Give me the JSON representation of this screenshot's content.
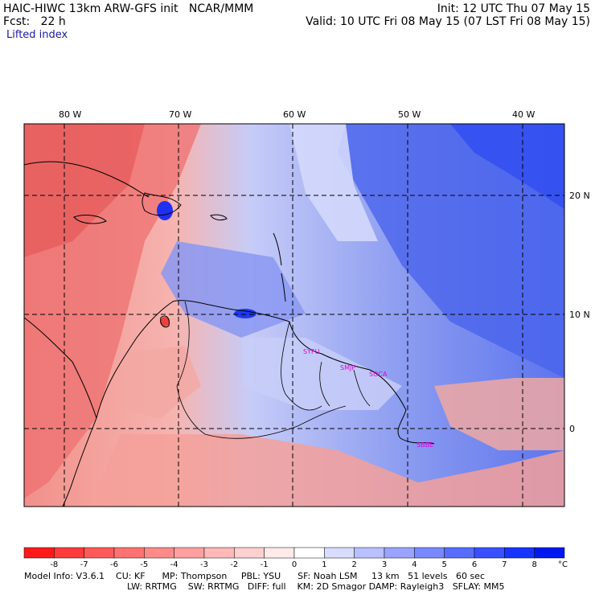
{
  "header": {
    "line1_left": "HAIC-HIWC 13km ARW-GFS init   NCAR/MMM",
    "line1_right": "Init: 12 UTC Thu 07 May 15",
    "line2_left": "Fcst:   22 h",
    "line2_right": "Valid: 10 UTC Fri 08 May 15 (07 LST Fri 08 May 15)",
    "field": "Lifted index"
  },
  "map": {
    "lon_labels": [
      "80 W",
      "70 W",
      "60 W",
      "50 W",
      "40 W"
    ],
    "lat_labels": [
      "20 N",
      "10 N",
      "0"
    ],
    "stations": [
      "SYFU",
      "SMJP",
      "SOCA",
      "SBBE"
    ],
    "colors": {
      "negative": "#f08080",
      "positive": "#5870f0",
      "coast": "#000000"
    }
  },
  "colorbar": {
    "ticks": [
      "-8",
      "-7",
      "-6",
      "-5",
      "-4",
      "-3",
      "-2",
      "-1",
      "0",
      "1",
      "2",
      "3",
      "4",
      "5",
      "6",
      "7",
      "8"
    ],
    "unit": "°C",
    "colors": [
      "#ff1a1a",
      "#ff3b3b",
      "#ff5a5a",
      "#ff7272",
      "#ff8a8a",
      "#ffa0a0",
      "#ffb8b8",
      "#ffd0d0",
      "#ffeaea",
      "#ffffff",
      "#d8dcff",
      "#b8c0ff",
      "#98a4ff",
      "#7888ff",
      "#586cff",
      "#3850ff",
      "#1834ff",
      "#0018f0"
    ]
  },
  "footer": {
    "line1": "Model Info: V3.6.1    CU: KF      MP: Thompson     PBL: YSU      SF: Noah LSM     13 km   51 levels   60 sec",
    "line2": "LW: RRTMG    SW: RRTMG   DIFF: full    KM: 2D Smagor DAMP: Rayleigh3   SFLAY: MM5"
  }
}
